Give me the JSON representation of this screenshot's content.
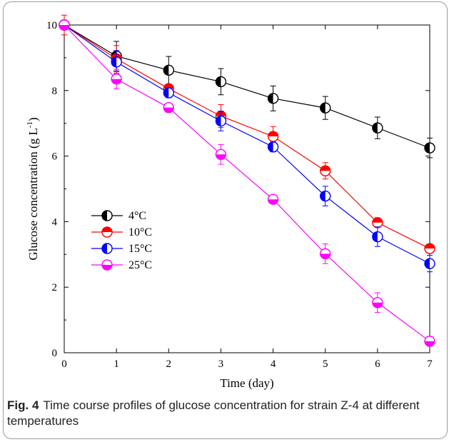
{
  "caption": {
    "label": "Fig. 4",
    "text": "Time course profiles of glucose concentration for strain Z-4 at different temperatures"
  },
  "chart_data": {
    "type": "line",
    "title": "",
    "xlabel": "Time (day)",
    "ylabel": "Glucose concentration (g L",
    "ylabel_superscript": "-1",
    "ylabel_suffix": ")",
    "xlim": [
      0,
      7
    ],
    "ylim": [
      0,
      10
    ],
    "x_ticks": [
      0,
      1,
      2,
      3,
      4,
      5,
      6,
      7
    ],
    "y_ticks": [
      0,
      2,
      4,
      6,
      8,
      10
    ],
    "grid": false,
    "legend_position": "center-left",
    "x": [
      0,
      1,
      2,
      3,
      4,
      5,
      6,
      7
    ],
    "series": [
      {
        "name": "4°C",
        "color": "#000000",
        "half": "left",
        "values": [
          10.0,
          9.05,
          8.62,
          8.27,
          7.76,
          7.47,
          6.86,
          6.25
        ],
        "errors": [
          0.15,
          0.45,
          0.42,
          0.4,
          0.38,
          0.35,
          0.33,
          0.3
        ]
      },
      {
        "name": "10°C",
        "color": "#ff0000",
        "half": "top",
        "values": [
          10.0,
          8.97,
          8.06,
          7.22,
          6.6,
          5.55,
          3.97,
          3.18
        ],
        "errors": [
          0.3,
          0.4,
          0.12,
          0.35,
          0.3,
          0.25,
          0.15,
          0.1
        ]
      },
      {
        "name": "15°C",
        "color": "#0000ff",
        "half": "left",
        "values": [
          10.0,
          8.87,
          7.93,
          7.07,
          6.28,
          4.78,
          3.54,
          2.72
        ],
        "errors": [
          0.15,
          0.35,
          0.15,
          0.3,
          0.15,
          0.3,
          0.3,
          0.25
        ]
      },
      {
        "name": "25°C",
        "color": "#ff00ff",
        "half": "bottom",
        "values": [
          10.0,
          8.35,
          7.48,
          6.05,
          4.68,
          3.02,
          1.53,
          0.35
        ],
        "errors": [
          0.15,
          0.3,
          0.12,
          0.3,
          0.1,
          0.3,
          0.3,
          0.15
        ]
      }
    ]
  }
}
